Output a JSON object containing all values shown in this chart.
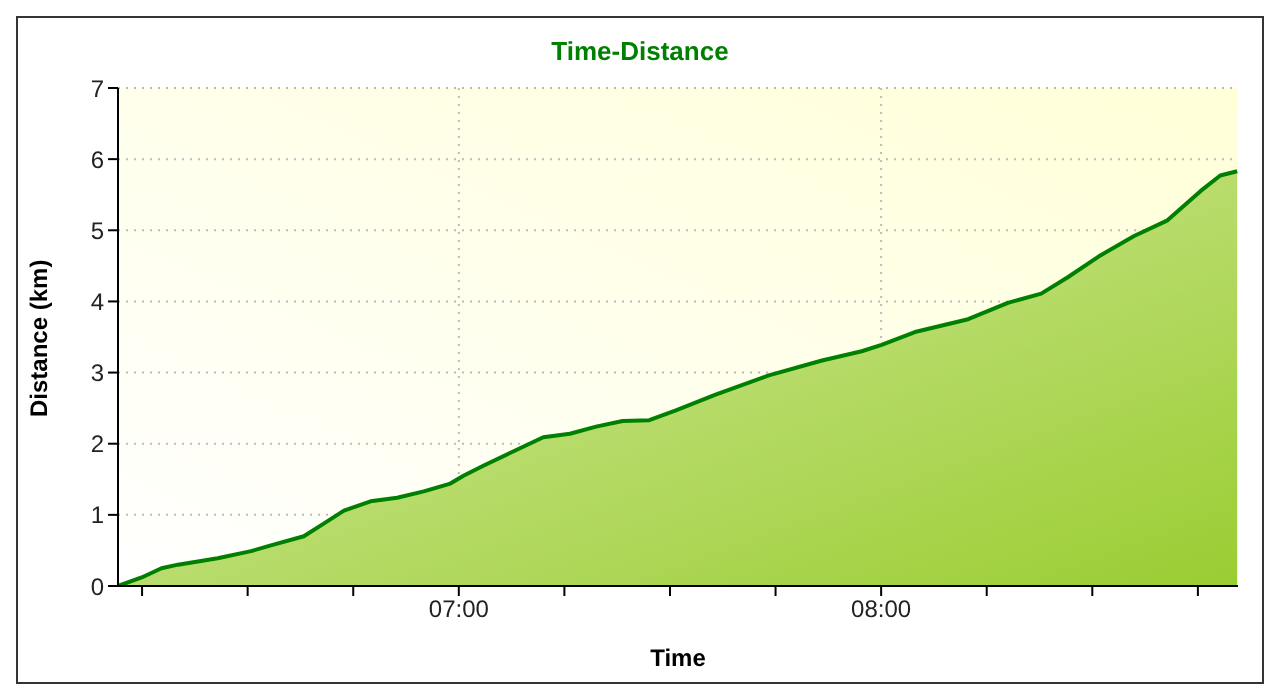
{
  "chart_data": {
    "type": "area",
    "title": "Time-Distance",
    "xlabel": "Time",
    "ylabel": "Distance (km)",
    "x": [
      6.193,
      6.249,
      6.296,
      6.335,
      6.429,
      6.508,
      6.555,
      6.633,
      6.681,
      6.728,
      6.791,
      6.854,
      6.917,
      6.98,
      7.011,
      7.058,
      7.121,
      7.2,
      7.263,
      7.325,
      7.388,
      7.451,
      7.514,
      7.608,
      7.734,
      7.86,
      7.954,
      8.001,
      8.08,
      8.206,
      8.3,
      8.379,
      8.442,
      8.52,
      8.599,
      8.678,
      8.756,
      8.803,
      8.843
    ],
    "series": [
      {
        "color": "#008000",
        "values": [
          0,
          0.12,
          0.25,
          0.3,
          0.39,
          0.49,
          0.57,
          0.7,
          0.88,
          1.06,
          1.19,
          1.24,
          1.33,
          1.44,
          1.55,
          1.69,
          1.87,
          2.09,
          2.14,
          2.24,
          2.32,
          2.33,
          2.47,
          2.69,
          2.96,
          3.17,
          3.3,
          3.39,
          3.57,
          3.75,
          3.98,
          4.11,
          4.34,
          4.65,
          4.92,
          5.14,
          5.55,
          5.77,
          5.83
        ]
      }
    ],
    "xlim": [
      6.193,
      8.845
    ],
    "xticks": [
      {
        "value": 6.25,
        "label": null
      },
      {
        "value": 6.5,
        "label": null
      },
      {
        "value": 6.75,
        "label": null
      },
      {
        "value": 7,
        "label": "07:00"
      },
      {
        "value": 7.25,
        "label": null
      },
      {
        "value": 7.5,
        "label": null
      },
      {
        "value": 7.75,
        "label": null
      },
      {
        "value": 8,
        "label": "08:00"
      },
      {
        "value": 8.25,
        "label": null
      },
      {
        "value": 8.5,
        "label": null
      },
      {
        "value": 8.75,
        "label": null
      }
    ],
    "ylim": [
      0,
      7
    ],
    "yticks": [
      0,
      1,
      2,
      3,
      4,
      5,
      6,
      7
    ],
    "grid": true
  }
}
